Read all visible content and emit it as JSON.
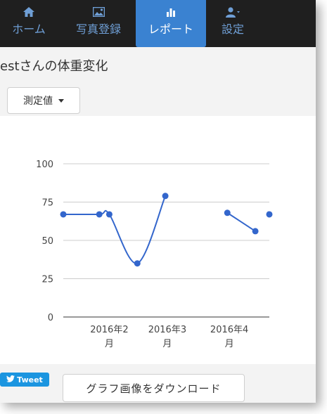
{
  "nav": {
    "items": [
      {
        "label": "ホーム",
        "icon": "home-icon",
        "active": false
      },
      {
        "label": "写真登録",
        "icon": "image-icon",
        "active": false
      },
      {
        "label": "レポート",
        "icon": "bar-chart-icon",
        "active": true
      },
      {
        "label": "設定",
        "icon": "user-icon",
        "active": false
      }
    ],
    "colors": {
      "background": "#1f1f1f",
      "active": "#3a82d1",
      "text": "#6f9fd6"
    }
  },
  "page": {
    "title": "estさんの体重変化"
  },
  "measure_dropdown": {
    "selected": "測定値"
  },
  "chart_data": {
    "type": "line",
    "x_type": "date",
    "x_ticks": [
      "2016年2月",
      "2016年3月",
      "2016年4月"
    ],
    "y_ticks": [
      "0",
      "25",
      "50",
      "75",
      "100"
    ],
    "ylim": [
      0,
      100
    ],
    "grid": true,
    "series": [
      {
        "color": "#3366cc",
        "points": [
          {
            "x": "2016-01-09",
            "y": 67
          },
          {
            "x": "2016-01-27",
            "y": 67
          },
          {
            "x": "2016-02-01",
            "y": 67
          },
          {
            "x": "2016-02-15",
            "y": 35
          },
          {
            "x": "2016-02-29",
            "y": 79
          },
          {
            "x": "2016-03-31",
            "y": 68
          },
          {
            "x": "2016-04-14",
            "y": 56
          },
          {
            "x": "2016-04-21",
            "y": 67
          }
        ],
        "segments": [
          [
            0,
            1,
            2,
            3,
            4
          ],
          [
            5,
            6
          ],
          [
            7
          ]
        ]
      }
    ]
  },
  "social": {
    "tweet_label": "Tweet"
  },
  "download_button": {
    "label": "グラフ画像をダウンロード"
  }
}
